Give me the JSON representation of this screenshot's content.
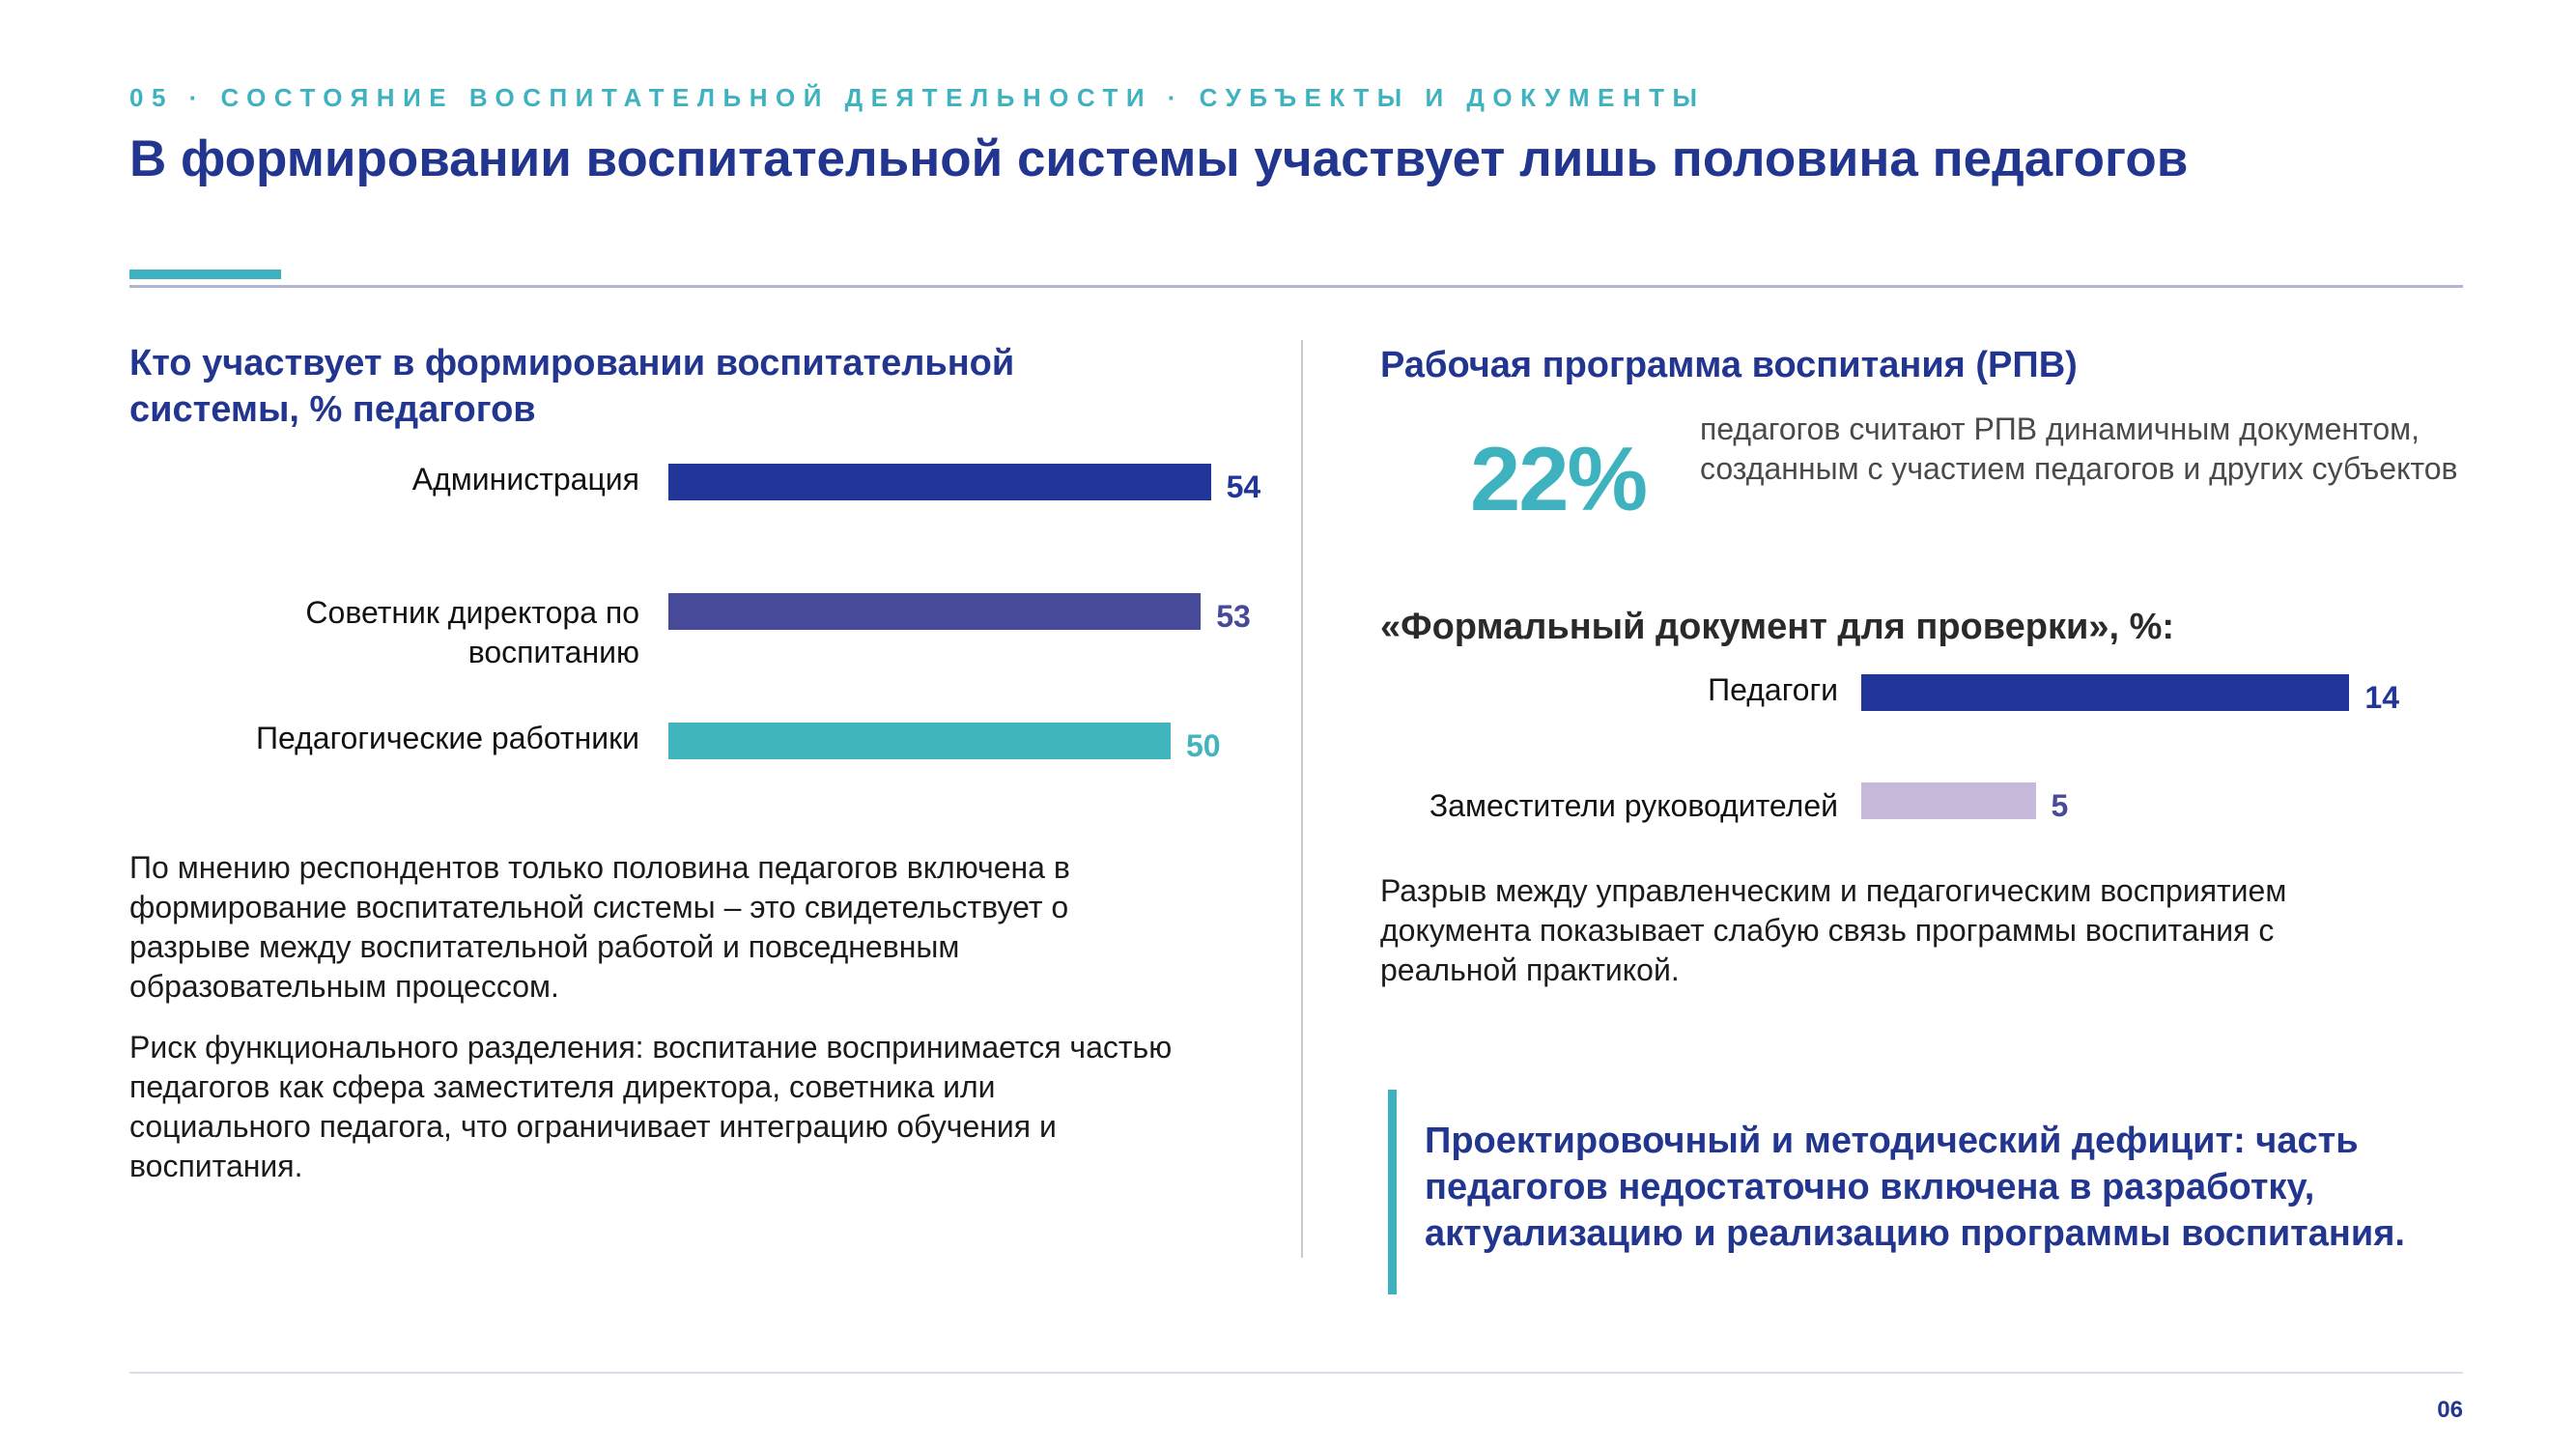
{
  "header": {
    "kicker": "05 · СОСТОЯНИЕ ВОСПИТАТЕЛЬНОЙ ДЕЯТЕЛЬНОСТИ · СУБЪЕКТЫ И ДОКУМЕНТЫ",
    "title": "В формировании воспитательной системы участвует лишь половина педагогов"
  },
  "left": {
    "paragraphs": [
      "По мнению респондентов только половина педагогов включена в формирование воспитательной системы – это свидетельствует о разрыве между воспитательной работой и повседневным образовательным процессом.",
      "Риск функционального разделения: воспитание воспринимается частью педагогов как сфера заместителя директора, советника или социального педагога, что ограничивает интеграцию обучения и воспитания."
    ]
  },
  "right": {
    "section_title": "Рабочая программа воспитания (РПВ)",
    "big_number": "22%",
    "big_number_note": "педагогов считают РПВ динамичным документом, созданным с участием педагогов и других субъектов",
    "summary": "Разрыв между управленческим и педагогическим восприятием документа показывает слабую связь программы воспитания с реальной практикой.",
    "callout": "Проектировочный и методический дефицит: часть педагогов недостаточно включена в разработку, актуализацию и реализацию программы воспитания."
  },
  "chart_data": [
    {
      "type": "bar",
      "orientation": "horizontal",
      "title": "Кто участвует в формировании воспитательной системы, % педагогов",
      "categories": [
        "Администрация",
        "Советник директора по воспитанию",
        "Педагогические работники"
      ],
      "values": [
        54,
        53,
        50
      ],
      "colors": [
        "#22369a",
        "#474a98",
        "#40b5be"
      ],
      "xlim": [
        0,
        100
      ],
      "grid": false
    },
    {
      "type": "bar",
      "orientation": "horizontal",
      "title": "«Формальный документ для проверки», %:",
      "categories": [
        "Педагоги",
        "Заместители руководителей"
      ],
      "values": [
        14,
        5
      ],
      "colors": [
        "#22369a",
        "#c6b9d9"
      ],
      "value_colors": [
        "#22369a",
        "#474a98"
      ],
      "xlim": [
        0,
        30
      ],
      "grid": false
    }
  ],
  "footer": {
    "page_number": "06"
  }
}
